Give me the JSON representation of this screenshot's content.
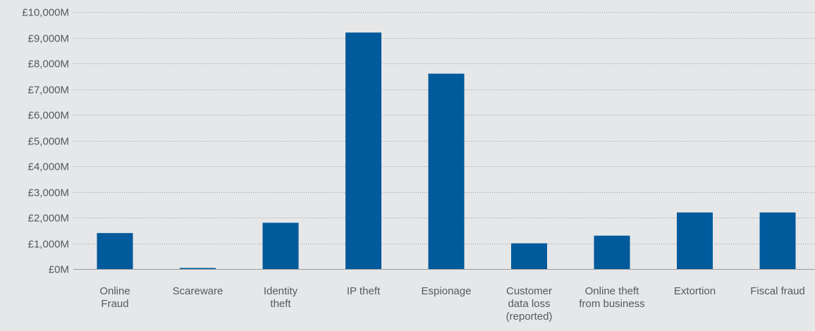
{
  "chart_data": {
    "type": "bar",
    "title": "",
    "xlabel": "",
    "ylabel": "",
    "unit_prefix": "£",
    "unit_suffix": "M",
    "ylim": [
      0,
      10000
    ],
    "yticks": [
      0,
      1000,
      2000,
      3000,
      4000,
      5000,
      6000,
      7000,
      8000,
      9000,
      10000
    ],
    "ytick_labels": [
      "£0M",
      "£1,000M",
      "£2,000M",
      "£3,000M",
      "£4,000M",
      "£5,000M",
      "£6,000M",
      "£7,000M",
      "£8,000M",
      "£9,000M",
      "£10,000M"
    ],
    "grid": true,
    "legend": "none",
    "bar_color": "#005a9c",
    "categories": [
      "Online Fraud",
      "Scareware",
      "Identity theft",
      "IP theft",
      "Espionage",
      "Customer data loss (reported)",
      "Online theft from business",
      "Extortion",
      "Fiscal fraud"
    ],
    "category_lines": [
      [
        "Online",
        "Fraud"
      ],
      [
        "Scareware"
      ],
      [
        "Identity",
        "theft"
      ],
      [
        "IP theft"
      ],
      [
        "Espionage"
      ],
      [
        "Customer",
        "data loss",
        "(reported)"
      ],
      [
        "Online theft",
        "from business"
      ],
      [
        "Extortion"
      ],
      [
        "Fiscal fraud"
      ]
    ],
    "values": [
      1400,
      30,
      1800,
      9200,
      7600,
      1000,
      1300,
      2200,
      2200
    ]
  }
}
